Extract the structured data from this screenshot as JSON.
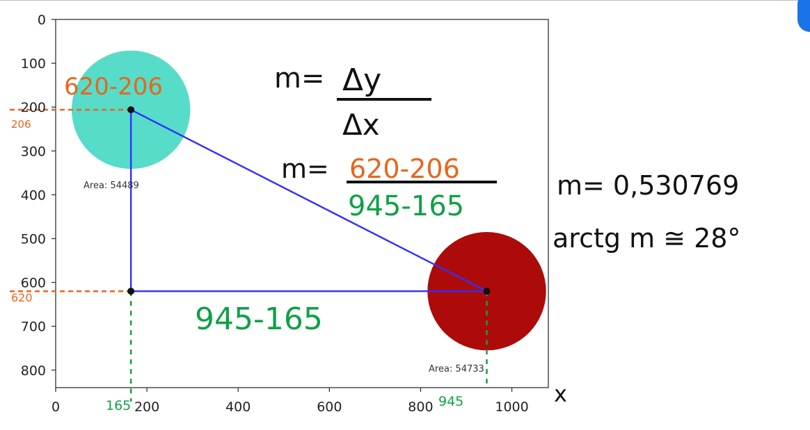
{
  "chart_data": {
    "type": "scatter",
    "xlim": [
      0,
      1080
    ],
    "ylim": [
      840,
      0
    ],
    "xticks": [
      0,
      200,
      400,
      600,
      800,
      1000
    ],
    "yticks": [
      0,
      100,
      200,
      300,
      400,
      500,
      600,
      700,
      800
    ],
    "blobs": [
      {
        "cx": 165,
        "cy": 206,
        "r": 130,
        "color": "#56dcc9",
        "area_label": "Area: 54489"
      },
      {
        "cx": 945,
        "cy": 620,
        "r": 130,
        "color": "#ad0a0a",
        "area_label": "Area: 54733"
      }
    ],
    "triangle": {
      "points": [
        [
          165,
          206
        ],
        [
          165,
          620
        ],
        [
          945,
          620
        ]
      ],
      "color": "#3030ff"
    },
    "annotations": {
      "label_y_diff_top": "620-206",
      "label_206": "206",
      "label_620": "620",
      "label_165": "165",
      "label_945": "945",
      "label_x_diff_bottom": "945-165",
      "formula_m": "m=",
      "formula_dy": "Δy",
      "formula_dx": "Δx",
      "formula_m2": "m=",
      "formula_num": "620-206",
      "formula_den": "945-165",
      "result_m": "m= 0,530769",
      "result_arctg": "arctg m ≅ 28°",
      "axis_x_mark": "x"
    },
    "colors": {
      "orange": "#e8661c",
      "green": "#10a048",
      "black": "#111111"
    }
  }
}
